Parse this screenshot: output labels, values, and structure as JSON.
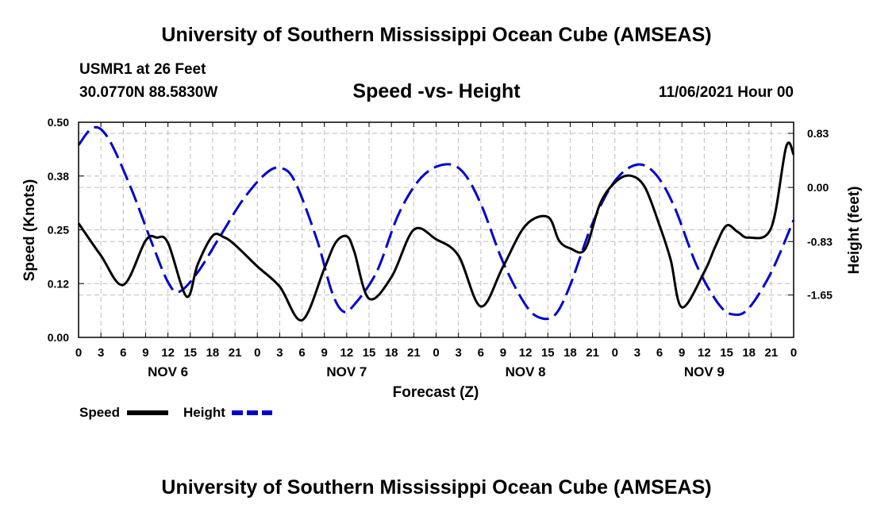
{
  "header": {
    "title": "University of Southern Mississippi Ocean Cube (AMSEAS)",
    "station": "USMR1 at 26 Feet",
    "coords": "30.0770N  88.5830W",
    "subtitle": "Speed -vs- Height",
    "datetime": "11/06/2021 Hour 00"
  },
  "footer": {
    "title": "University of Southern Mississippi Ocean Cube (AMSEAS)"
  },
  "chart_data": {
    "type": "line",
    "title": "Speed -vs- Height",
    "xlabel": "Forecast (Z)",
    "ylabel": "Speed (Knots)",
    "y2label": "Height (feet)",
    "x_range_hours": [
      0,
      96
    ],
    "ylim": [
      0,
      0.5
    ],
    "y2lim": [
      -2.3,
      1.0
    ],
    "left_ticks": [
      "0.00",
      "0.12",
      "0.25",
      "0.38",
      "0.50"
    ],
    "left_tick_values": [
      0,
      0.125,
      0.25,
      0.375,
      0.5
    ],
    "right_ticks": [
      "-1.65",
      "-0.83",
      "0.00",
      "0.83"
    ],
    "right_tick_values": [
      -1.65,
      -0.83,
      0.0,
      0.83
    ],
    "x_tick_labels": [
      "0",
      "3",
      "6",
      "9",
      "12",
      "15",
      "18",
      "21",
      "0",
      "3",
      "6",
      "9",
      "12",
      "15",
      "18",
      "21",
      "0",
      "3",
      "6",
      "9",
      "12",
      "15",
      "18",
      "21",
      "0",
      "3",
      "6",
      "9",
      "12",
      "15",
      "18",
      "21",
      "0"
    ],
    "day_labels": [
      {
        "label": "NOV 6",
        "hour": 12
      },
      {
        "label": "NOV 7",
        "hour": 36
      },
      {
        "label": "NOV 8",
        "hour": 60
      },
      {
        "label": "NOV 9",
        "hour": 84
      }
    ],
    "legend": [
      {
        "name": "Speed",
        "color": "#000000",
        "style": "solid"
      },
      {
        "name": "Height",
        "color": "#0000cc",
        "style": "dashed"
      }
    ],
    "series": [
      {
        "name": "Speed",
        "axis": "left",
        "color": "#000000",
        "style": "solid",
        "x": [
          0,
          3,
          6,
          9,
          10.5,
          12,
          14.5,
          16,
          18,
          19.5,
          21,
          24,
          27,
          30,
          33,
          34.5,
          36,
          37,
          39,
          42,
          45,
          48,
          51,
          54,
          57,
          60,
          63,
          64.5,
          66,
          68,
          70,
          72,
          74,
          76,
          78,
          79.5,
          81,
          84,
          85.5,
          87,
          88.5,
          90,
          93,
          95,
          96
        ],
        "values": [
          0.265,
          0.19,
          0.122,
          0.225,
          0.232,
          0.22,
          0.095,
          0.17,
          0.236,
          0.233,
          0.215,
          0.165,
          0.118,
          0.04,
          0.16,
          0.22,
          0.235,
          0.2,
          0.09,
          0.14,
          0.25,
          0.228,
          0.19,
          0.072,
          0.165,
          0.26,
          0.28,
          0.225,
          0.207,
          0.205,
          0.31,
          0.36,
          0.376,
          0.35,
          0.26,
          0.18,
          0.07,
          0.152,
          0.212,
          0.26,
          0.245,
          0.232,
          0.255,
          0.443,
          0.425
        ]
      },
      {
        "name": "Height",
        "axis": "right",
        "color": "#0000cc",
        "style": "dashed",
        "x": [
          0,
          2,
          4,
          7,
          10,
          12,
          13.5,
          16,
          19,
          22,
          25,
          27,
          29,
          32,
          34,
          35.5,
          37,
          40,
          43,
          46,
          49,
          51.5,
          54,
          57,
          60,
          62,
          64,
          66,
          69,
          72,
          75,
          77.5,
          80,
          83,
          86,
          88,
          90,
          93,
          96
        ],
        "values": [
          0.65,
          0.92,
          0.75,
          0.0,
          -0.9,
          -1.45,
          -1.6,
          -1.3,
          -0.75,
          -0.2,
          0.2,
          0.3,
          0.1,
          -0.8,
          -1.6,
          -1.9,
          -1.8,
          -1.3,
          -0.4,
          0.15,
          0.35,
          0.25,
          -0.25,
          -1.15,
          -1.8,
          -2.0,
          -1.95,
          -1.5,
          -0.55,
          0.1,
          0.35,
          0.2,
          -0.3,
          -1.2,
          -1.8,
          -1.95,
          -1.85,
          -1.3,
          -0.5
        ]
      }
    ]
  }
}
